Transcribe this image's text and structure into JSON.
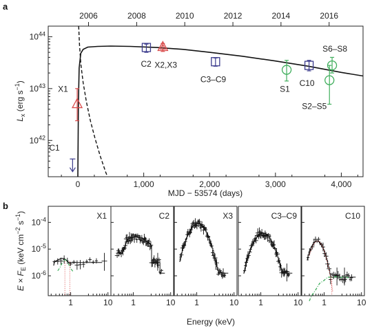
{
  "chart_data": [
    {
      "panel": "a",
      "type": "scatter",
      "xlabel": "MJD − 53574 (days)",
      "ylabel": "L",
      "ylabel_sub": "x",
      "ylabel_unit": "(erg s",
      "ylabel_unit_sup": "−1",
      "ylabel_unit_end": ")",
      "x_ticks": [
        0,
        1000,
        2000,
        3000,
        4000
      ],
      "x_tick_labels": [
        "0",
        "1,000",
        "2,000",
        "3,000",
        "4,000"
      ],
      "xlim": [
        -450,
        4330
      ],
      "top_ticks": [
        2006,
        2008,
        2010,
        2012,
        2014,
        2016
      ],
      "top_tick_x": [
        162,
        893,
        1623,
        2354,
        3084,
        3815
      ],
      "y_scale": "log",
      "ylim": [
        2e+41,
        1.6e+44
      ],
      "y_tick_exponents": [
        42,
        43,
        44
      ],
      "y_tick_base": "10",
      "colors": {
        "swift": "#3b3b8c",
        "xmm": "#d94a4a",
        "chandra": "#3fae5c",
        "model": "#111111"
      },
      "series": [
        {
          "name": "C1",
          "marker": "arrow-down",
          "color": "#3b3b8c",
          "x": -80,
          "y": 4.4e+41,
          "y_low": 2.5e+41,
          "label": "C1"
        },
        {
          "name": "X1",
          "marker": "triangle",
          "color": "#d94a4a",
          "x": -10,
          "y": 5e+42,
          "y_err_low": 2.4e+42,
          "y_err_high": 1e+43,
          "label": "X1"
        },
        {
          "name": "C2",
          "marker": "square",
          "color": "#3b3b8c",
          "x": 1040,
          "y": 6.2e+43,
          "y_err_low": 5e+43,
          "y_err_high": 7.2e+43,
          "label": "C2"
        },
        {
          "name": "X2,X3",
          "marker": "triangle",
          "color": "#d94a4a",
          "x": 1290,
          "y": 6.3e+43,
          "y_err_low": 5.2e+43,
          "y_err_high": 7.4e+43,
          "label": "X2,X3"
        },
        {
          "name": "C3–C9",
          "marker": "square",
          "color": "#3b3b8c",
          "x": 2090,
          "y": 3.3e+43,
          "y_err_low": 2.7e+43,
          "y_err_high": 3.9e+43,
          "label": "C3–C9"
        },
        {
          "name": "S1",
          "marker": "circle",
          "color": "#3fae5c",
          "x": 3170,
          "y": 2.3e+43,
          "y_err_low": 1.4e+43,
          "y_err_high": 3.5e+43,
          "label": "S1"
        },
        {
          "name": "C10",
          "marker": "square",
          "color": "#3b3b8c",
          "x": 3510,
          "y": 2.8e+43,
          "y_err_low": 2.2e+43,
          "y_err_high": 3.5e+43,
          "label": "C10"
        },
        {
          "name": "S2–S5",
          "marker": "circle",
          "color": "#3fae5c",
          "x": 3820,
          "y": 1.45e+43,
          "y_err_low": 5e+42,
          "y_err_high": 2.8e+43,
          "label": "S2–S5"
        },
        {
          "name": "S6–S8",
          "marker": "circle",
          "color": "#3fae5c",
          "x": 3860,
          "y": 2.8e+43,
          "y_err_low": 2e+43,
          "y_err_high": 4e+43,
          "label": "S6–S8"
        }
      ],
      "model_curve": [
        [
          0,
          2e+41
        ],
        [
          8,
          5e+42
        ],
        [
          20,
          2.5e+43
        ],
        [
          45,
          4.8e+43
        ],
        [
          80,
          5.7e+43
        ],
        [
          150,
          6.3e+43
        ],
        [
          300,
          6.5e+43
        ],
        [
          500,
          6.6e+43
        ],
        [
          800,
          6.5e+43
        ],
        [
          1200,
          6.2e+43
        ],
        [
          1600,
          5.7e+43
        ],
        [
          2000,
          5e+43
        ],
        [
          2500,
          4.2e+43
        ],
        [
          3000,
          3.4e+43
        ],
        [
          3500,
          2.7e+43
        ],
        [
          4000,
          2.05e+43
        ],
        [
          4330,
          1.75e+43
        ]
      ],
      "dashed_curve": [
        [
          12,
          1.6e+44
        ],
        [
          25,
          7e+43
        ],
        [
          45,
          3e+43
        ],
        [
          80,
          1.3e+43
        ],
        [
          130,
          5.5e+42
        ],
        [
          190,
          2.4e+42
        ],
        [
          260,
          1.1e+42
        ],
        [
          340,
          5e+41
        ],
        [
          420,
          2.5e+41
        ],
        [
          450,
          2e+41
        ]
      ]
    },
    {
      "panel": "b",
      "type": "line",
      "xlabel": "Energy (keV)",
      "ylabel_prefix": "E × F",
      "ylabel_sub": "E",
      "ylabel_unit": "(keV cm",
      "ylabel_unit_sup1": "−2",
      "ylabel_unit_mid": " s",
      "ylabel_unit_sup2": "−1",
      "ylabel_unit_end": ")",
      "y_scale": "log",
      "x_scale": "log",
      "ylim": [
        1.8e-07,
        0.0004
      ],
      "xlim": [
        0.25,
        12
      ],
      "y_tick_exponents": [
        -6,
        -5,
        -4
      ],
      "y_tick_base": "10",
      "x_ticks": [
        1,
        10
      ],
      "x_tick_labels": [
        "1",
        "10"
      ],
      "panels": [
        {
          "name": "X1",
          "label": "X1",
          "x_tick_labels": [
            "1",
            "10"
          ],
          "has_components": true
        },
        {
          "name": "C2",
          "label": "C2",
          "x_tick_labels": [
            "1",
            "10"
          ],
          "has_components": false
        },
        {
          "name": "X3",
          "label": "X3",
          "x_tick_labels": [
            "1",
            "10"
          ],
          "has_components": false
        },
        {
          "name": "C3–C9",
          "label": "C3–C9",
          "x_tick_labels": [
            "1",
            "10"
          ],
          "has_components": false
        },
        {
          "name": "C10",
          "label": "C10",
          "x_tick_labels": [
            "1",
            "10"
          ],
          "has_components": true
        }
      ]
    }
  ]
}
